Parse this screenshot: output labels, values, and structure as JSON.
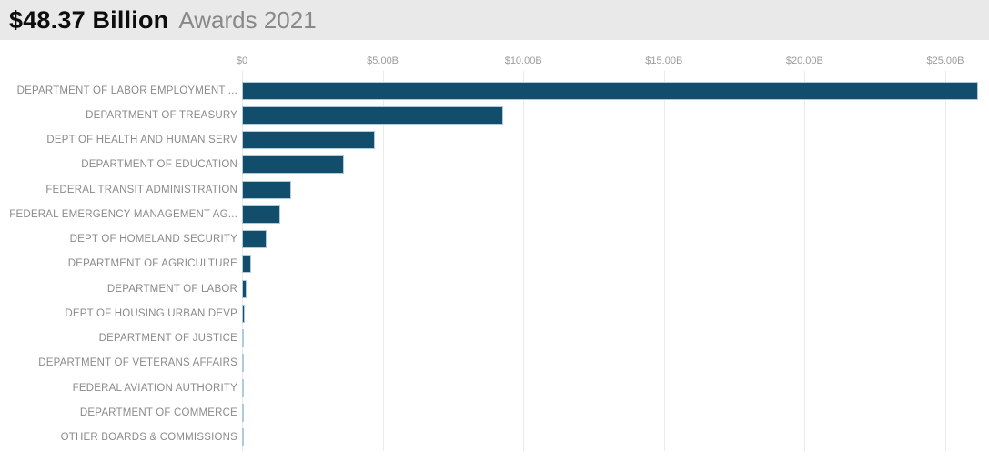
{
  "header": {
    "title": "$48.37 Billion",
    "subtitle": "Awards 2021"
  },
  "colors": {
    "bar_fill": "#124e6c",
    "bar_border": "#aecbdc",
    "header_bg": "#e9e9e9",
    "gridline": "#eaeaea",
    "label_text": "#8a8a8a",
    "tick_text": "#9c9c9c",
    "title_text": "#0d0d0d",
    "subtitle_text": "#898989"
  },
  "chart_data": {
    "type": "bar",
    "orientation": "horizontal",
    "title": "$48.37 Billion",
    "subtitle": "Awards 2021",
    "categories": [
      "DEPARTMENT OF LABOR EMPLOYMENT ...",
      "DEPARTMENT OF TREASURY",
      "DEPT OF HEALTH AND HUMAN SERV",
      "DEPARTMENT OF EDUCATION",
      "FEDERAL TRANSIT ADMINISTRATION",
      "FEDERAL EMERGENCY MANAGEMENT AG...",
      "DEPT OF HOMELAND SECURITY",
      "DEPARTMENT OF AGRICULTURE",
      "DEPARTMENT OF LABOR",
      "DEPT OF HOUSING URBAN DEVP",
      "DEPARTMENT OF JUSTICE",
      "DEPARTMENT OF VETERANS AFFAIRS",
      "FEDERAL AVIATION AUTHORITY",
      "DEPARTMENT OF COMMERCE",
      "OTHER BOARDS & COMMISSIONS"
    ],
    "values": [
      26.16,
      9.28,
      4.71,
      3.61,
      1.75,
      1.36,
      0.87,
      0.32,
      0.15,
      0.11,
      0.01,
      0.01,
      0.01,
      0.01,
      0.01
    ],
    "value_unit": "USD billions",
    "total": "$48.37 Billion",
    "x_ticks": [
      "$0",
      "$5.00B",
      "$10.00B",
      "$15.00B",
      "$20.00B",
      "$25.00B"
    ],
    "x_tick_values": [
      0,
      5,
      10,
      15,
      20,
      25
    ],
    "xlim": [
      0,
      26.55
    ],
    "grid": "vertical",
    "legend": "none"
  }
}
